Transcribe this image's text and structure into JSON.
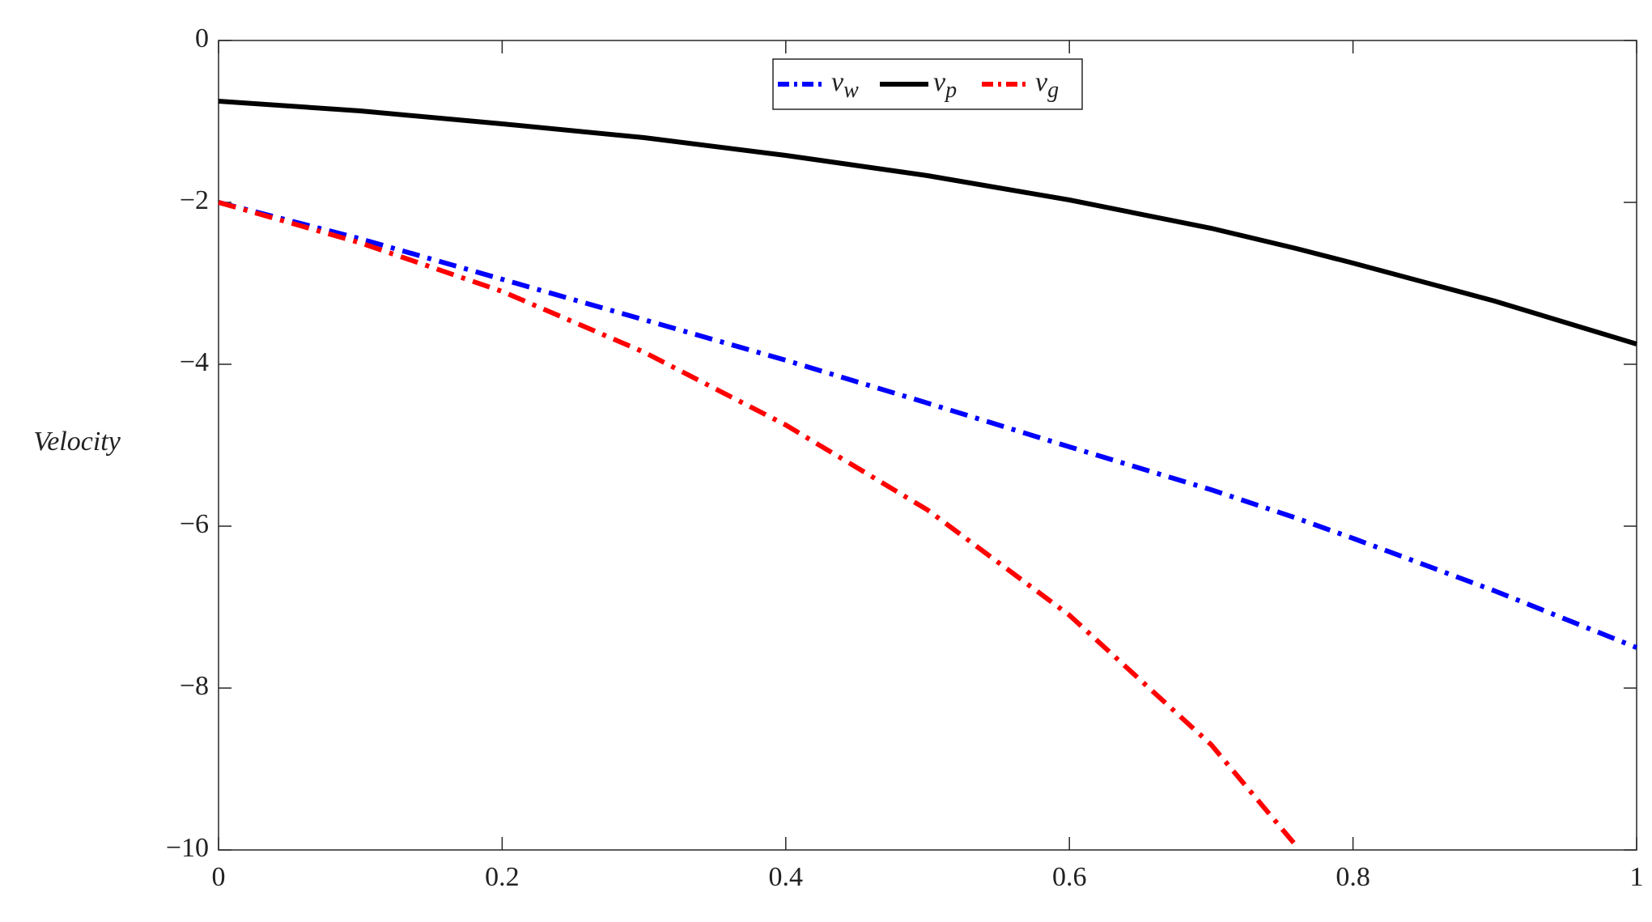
{
  "chart_data": {
    "type": "line",
    "y_label": "Velocity",
    "x": [
      0,
      0.1,
      0.2,
      0.3,
      0.4,
      0.5,
      0.6,
      0.7,
      0.76,
      0.8,
      0.9,
      1
    ],
    "series": [
      {
        "name": "vw",
        "color": "#0000ff",
        "dash": "dashdot",
        "values": [
          -2,
          -2.45,
          -2.95,
          -3.45,
          -3.95,
          -4.48,
          -5.02,
          -5.55,
          -5.9,
          -6.15,
          -6.8,
          -7.5
        ]
      },
      {
        "name": "vp",
        "color": "#000000",
        "dash": "solid",
        "values": [
          -0.75,
          -0.87,
          -1.03,
          -1.2,
          -1.42,
          -1.67,
          -1.97,
          -2.32,
          -2.57,
          -2.75,
          -3.22,
          -3.75
        ]
      },
      {
        "name": "vg",
        "color": "#ff0000",
        "dash": "dashdot",
        "values": [
          -2,
          -2.5,
          -3.1,
          -3.85,
          -4.75,
          -5.8,
          -7.1,
          -8.7,
          -9.95,
          null,
          null,
          null
        ]
      }
    ],
    "xlim": [
      0,
      1
    ],
    "ylim": [
      -10,
      0
    ],
    "xticks": [
      0,
      0.2,
      0.4,
      0.6,
      0.8,
      1
    ],
    "yticks": [
      {
        "value": -10,
        "label": "−10"
      },
      {
        "value": -8,
        "label": "−8"
      },
      {
        "value": -6,
        "label": "−6"
      },
      {
        "value": -4,
        "label": "−4"
      },
      {
        "value": -2,
        "label": "−2"
      },
      0
    ],
    "legend": "top-center",
    "grid": false
  }
}
